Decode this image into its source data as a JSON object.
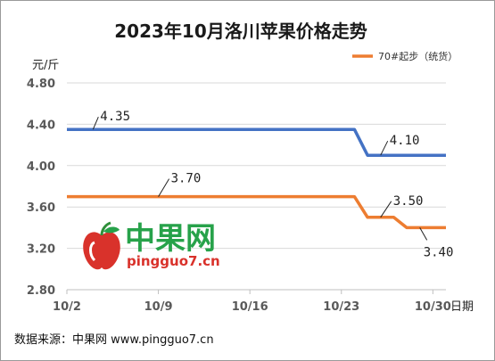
{
  "chart_data": {
    "type": "line",
    "title": "2023年10月洛川苹果价格走势",
    "y_unit": "元/斤",
    "x_axis_name": "日期",
    "ylim": [
      2.8,
      4.8
    ],
    "yticks": [
      "4.80",
      "4.40",
      "4.00",
      "3.60",
      "3.20",
      "2.80"
    ],
    "xlim": [
      "10/2",
      "10/31"
    ],
    "xticks": [
      "10/2",
      "10/9",
      "10/16",
      "10/23",
      "10/30"
    ],
    "grid": true,
    "legend_position": "top-right",
    "series": [
      {
        "name": "",
        "color": "#4472c4",
        "points": [
          {
            "x": "10/2",
            "y": 4.35
          },
          {
            "x": "10/24",
            "y": 4.35
          },
          {
            "x": "10/25",
            "y": 4.1
          },
          {
            "x": "10/31",
            "y": 4.1
          }
        ]
      },
      {
        "name": "70#起步（统货）",
        "color": "#ed7d31",
        "points": [
          {
            "x": "10/2",
            "y": 3.7
          },
          {
            "x": "10/24",
            "y": 3.7
          },
          {
            "x": "10/25",
            "y": 3.5
          },
          {
            "x": "10/27",
            "y": 3.5
          },
          {
            "x": "10/28",
            "y": 3.4
          },
          {
            "x": "10/31",
            "y": 3.4
          }
        ]
      }
    ],
    "annotations": [
      {
        "text": "4.35",
        "series": 0
      },
      {
        "text": "4.10",
        "series": 0
      },
      {
        "text": "3.70",
        "series": 1
      },
      {
        "text": "3.50",
        "series": 1
      },
      {
        "text": "3.40",
        "series": 1
      }
    ]
  },
  "watermark": {
    "text_cn": "中果网",
    "text_en": "pingguo7.cn",
    "logo": "apple-logo-icon"
  },
  "source_text": "数据来源：中果网 www.pingguo7.cn"
}
